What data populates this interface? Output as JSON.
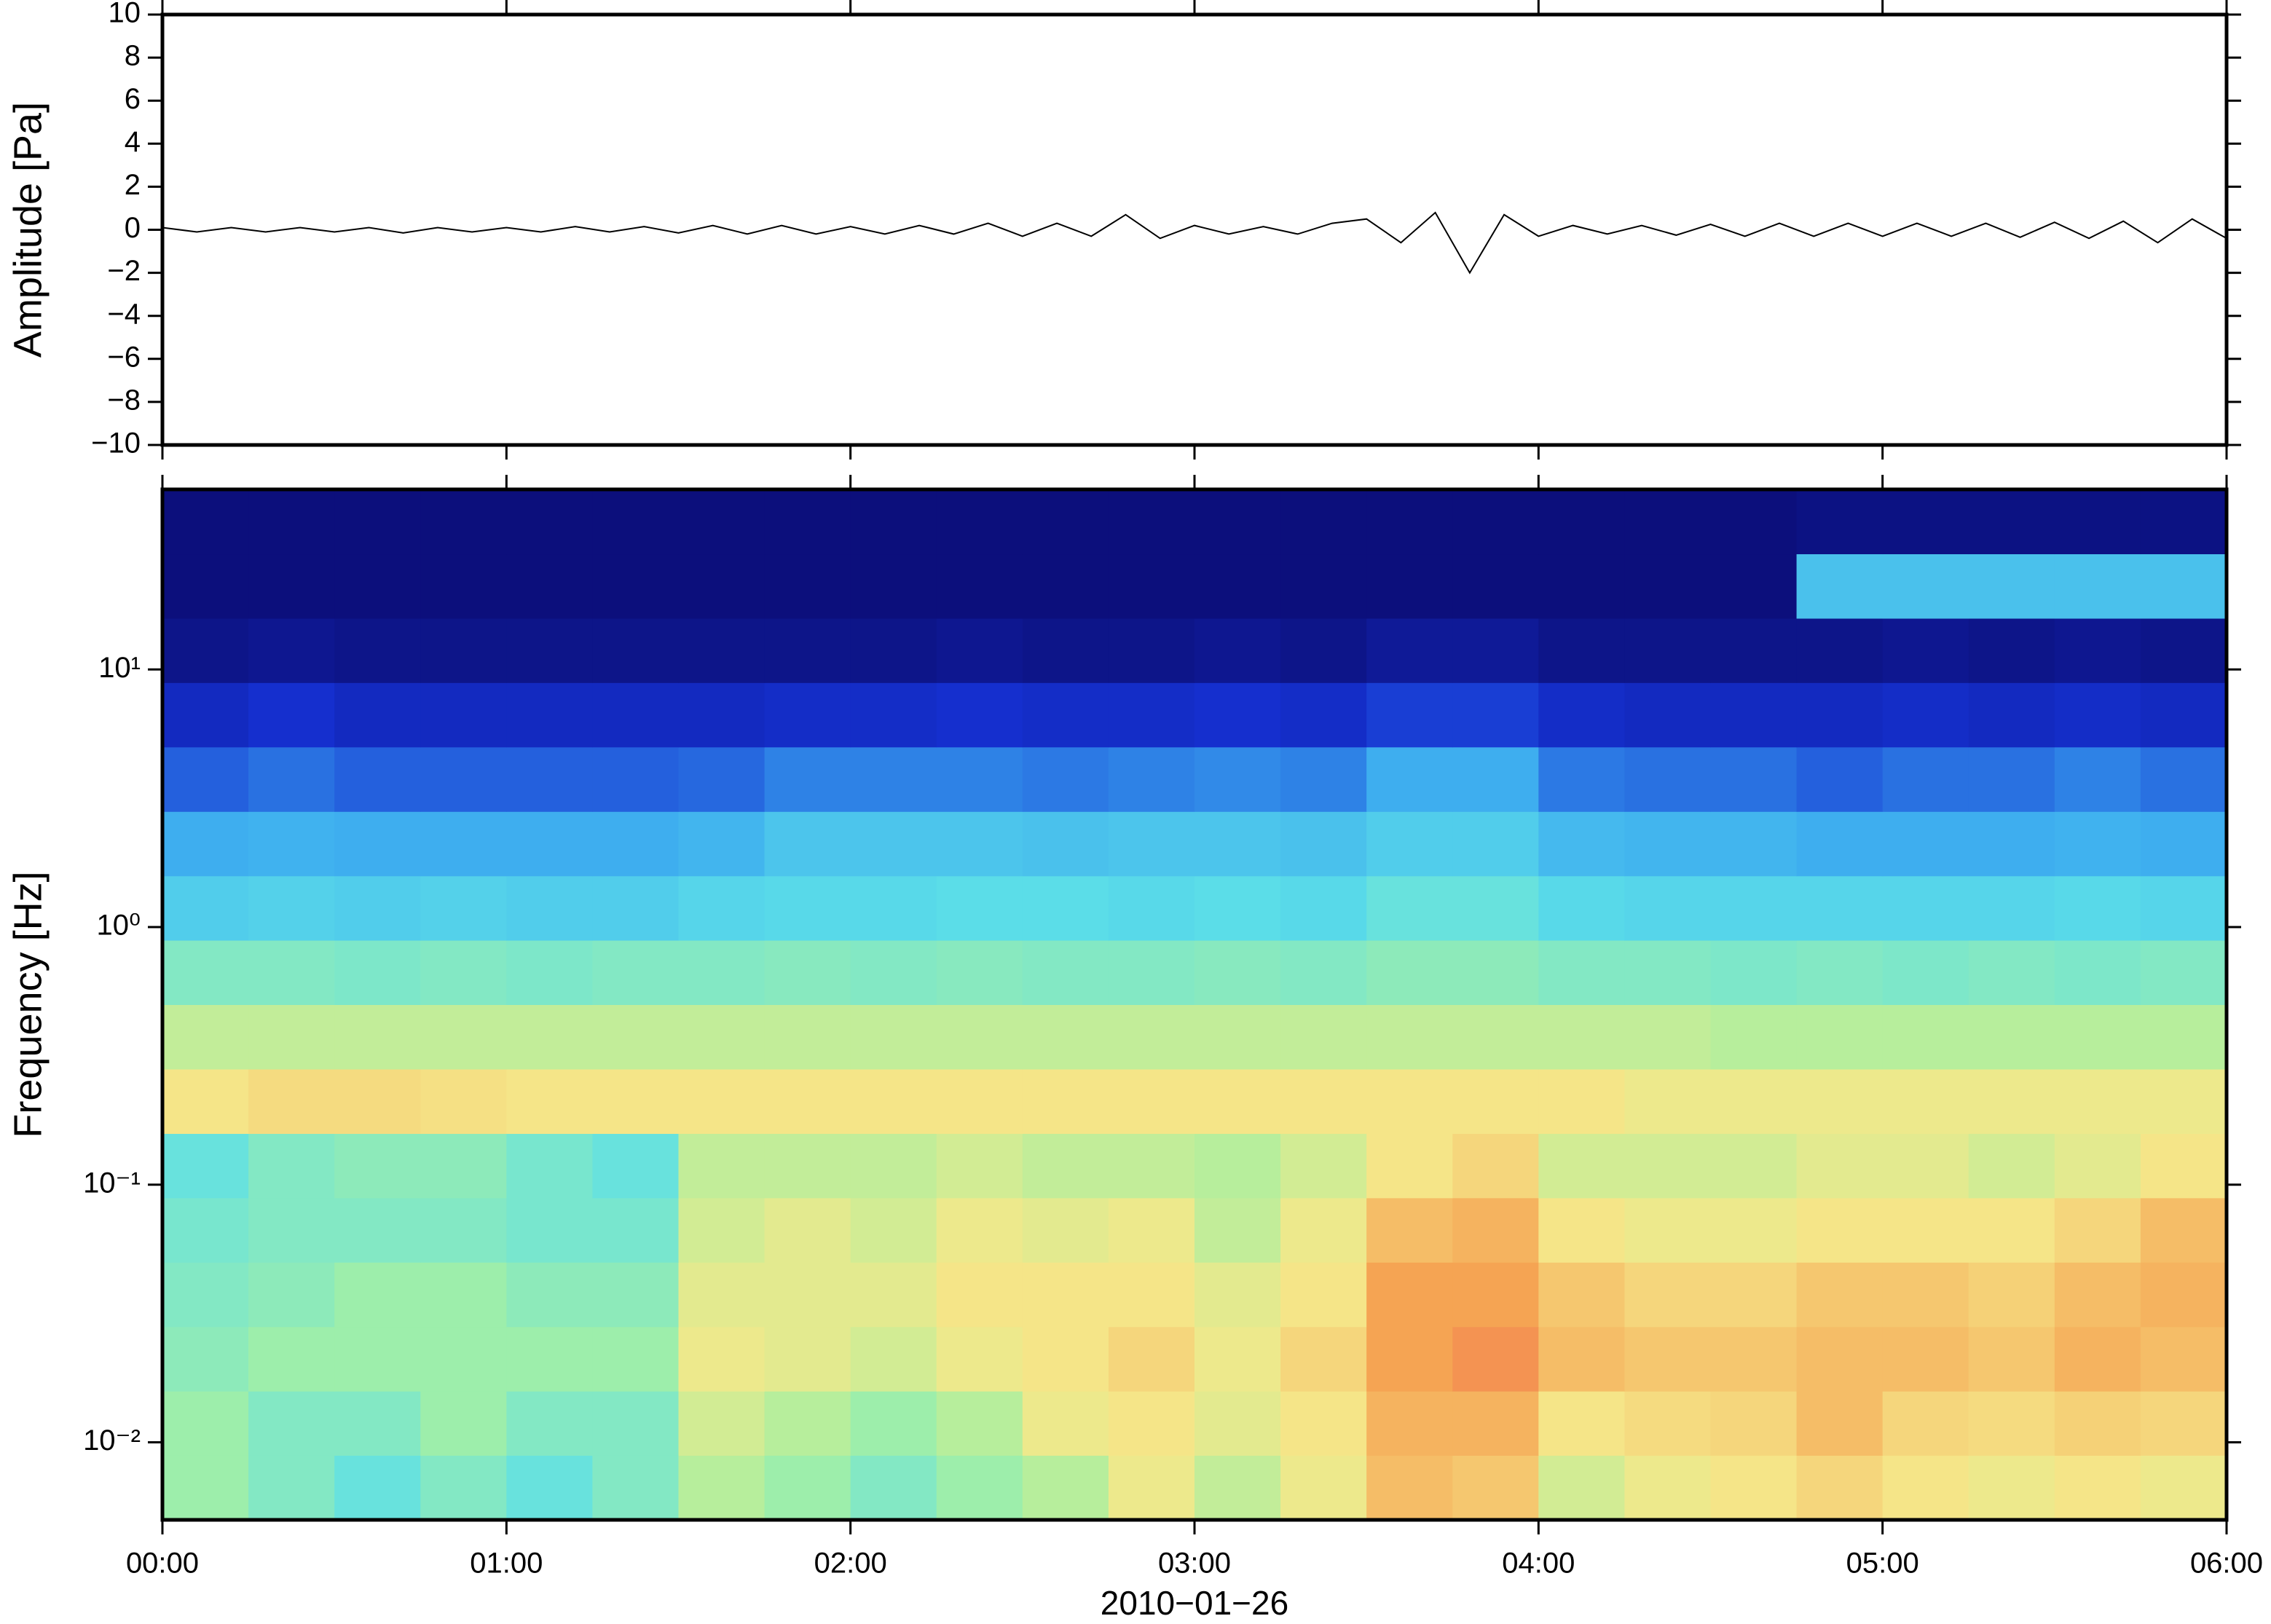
{
  "chart_data": [
    {
      "type": "line",
      "ylabel": "Amplitude [Pa]",
      "xlim": [
        0,
        360
      ],
      "xticks": [
        0,
        60,
        120,
        180,
        240,
        300,
        360
      ],
      "ylim": [
        -10,
        10
      ],
      "yticks": [
        {
          "value": -10,
          "label": "−10"
        },
        {
          "value": -8,
          "label": "−8"
        },
        {
          "value": -6,
          "label": "−6"
        },
        {
          "value": -4,
          "label": "−4"
        },
        {
          "value": -2,
          "label": "−2"
        },
        0,
        2,
        4,
        6,
        8,
        10
      ],
      "color": "#000000",
      "x": [
        0,
        6,
        12,
        18,
        24,
        30,
        36,
        42,
        48,
        54,
        60,
        66,
        72,
        78,
        84,
        90,
        96,
        102,
        108,
        114,
        120,
        126,
        132,
        138,
        144,
        150,
        156,
        162,
        168,
        174,
        180,
        186,
        192,
        198,
        204,
        210,
        216,
        222,
        228,
        234,
        240,
        246,
        252,
        258,
        264,
        270,
        276,
        282,
        288,
        294,
        300,
        306,
        312,
        318,
        324,
        330,
        336,
        342,
        348,
        354,
        360
      ],
      "values": [
        0.1,
        -0.1,
        0.1,
        -0.1,
        0.1,
        -0.1,
        0.1,
        -0.15,
        0.1,
        -0.1,
        0.1,
        -0.1,
        0.15,
        -0.1,
        0.15,
        -0.15,
        0.2,
        -0.2,
        0.2,
        -0.2,
        0.15,
        -0.2,
        0.2,
        -0.2,
        0.3,
        -0.3,
        0.3,
        -0.3,
        0.7,
        -0.4,
        0.2,
        -0.2,
        0.15,
        -0.2,
        0.3,
        0.5,
        -0.6,
        0.8,
        -2.0,
        0.7,
        -0.3,
        0.2,
        -0.2,
        0.2,
        -0.25,
        0.25,
        -0.3,
        0.3,
        -0.3,
        0.3,
        -0.3,
        0.3,
        -0.3,
        0.3,
        -0.35,
        0.35,
        -0.4,
        0.4,
        -0.6,
        0.5,
        -0.4
      ]
    },
    {
      "type": "heatmap",
      "ylabel": "Frequency [Hz]",
      "xlabel": "2010−01−26",
      "xlim": [
        0,
        360
      ],
      "xticks": [
        {
          "value": 0,
          "label": "00:00"
        },
        {
          "value": 60,
          "label": "01:00"
        },
        {
          "value": 120,
          "label": "02:00"
        },
        {
          "value": 180,
          "label": "03:00"
        },
        {
          "value": 240,
          "label": "04:00"
        },
        {
          "value": 300,
          "label": "05:00"
        },
        {
          "value": 360,
          "label": "06:00"
        }
      ],
      "ylim": [
        0.005,
        50
      ],
      "log_y": true,
      "yticks": [
        {
          "value": 0.01,
          "label": "10⁻²"
        },
        {
          "value": 0.1,
          "label": "10⁻¹"
        },
        {
          "value": 1,
          "label": "10⁰"
        },
        {
          "value": 10,
          "label": "10¹"
        }
      ],
      "colormap": [
        "#0a0a6e",
        "#1530d0",
        "#3aa8f0",
        "#5de0e8",
        "#a8f0a0",
        "#f5e88a",
        "#f5a050",
        "#f0505a"
      ],
      "xbins": [
        0,
        15,
        30,
        45,
        60,
        75,
        90,
        105,
        120,
        135,
        150,
        165,
        180,
        195,
        210,
        225,
        240,
        255,
        270,
        285,
        300,
        315,
        330,
        345,
        360
      ],
      "ybins": [
        0.005,
        0.0089,
        0.0158,
        0.0281,
        0.05,
        0.0889,
        0.158,
        0.281,
        0.5,
        0.889,
        1.58,
        2.81,
        5,
        8.89,
        15.8,
        28.1,
        50
      ],
      "z": [
        [
          0.55,
          0.5,
          0.45,
          0.5,
          0.45,
          0.5,
          0.6,
          0.55,
          0.5,
          0.55,
          0.6,
          0.7,
          0.62,
          0.7,
          0.8,
          0.78,
          0.65,
          0.7,
          0.72,
          0.75,
          0.72,
          0.7,
          0.72,
          0.7
        ],
        [
          0.55,
          0.5,
          0.5,
          0.55,
          0.5,
          0.5,
          0.65,
          0.6,
          0.55,
          0.6,
          0.7,
          0.72,
          0.68,
          0.72,
          0.82,
          0.82,
          0.72,
          0.74,
          0.75,
          0.8,
          0.75,
          0.74,
          0.76,
          0.75
        ],
        [
          0.52,
          0.55,
          0.55,
          0.55,
          0.55,
          0.55,
          0.7,
          0.68,
          0.65,
          0.7,
          0.72,
          0.75,
          0.7,
          0.75,
          0.85,
          0.88,
          0.8,
          0.78,
          0.78,
          0.8,
          0.8,
          0.78,
          0.82,
          0.8
        ],
        [
          0.5,
          0.52,
          0.55,
          0.55,
          0.52,
          0.52,
          0.68,
          0.68,
          0.68,
          0.72,
          0.72,
          0.72,
          0.68,
          0.72,
          0.85,
          0.85,
          0.78,
          0.75,
          0.75,
          0.78,
          0.78,
          0.76,
          0.8,
          0.82
        ],
        [
          0.48,
          0.5,
          0.5,
          0.5,
          0.48,
          0.48,
          0.65,
          0.68,
          0.65,
          0.7,
          0.68,
          0.7,
          0.62,
          0.7,
          0.8,
          0.82,
          0.72,
          0.7,
          0.7,
          0.72,
          0.72,
          0.72,
          0.75,
          0.8
        ],
        [
          0.45,
          0.5,
          0.52,
          0.52,
          0.48,
          0.45,
          0.62,
          0.62,
          0.62,
          0.65,
          0.62,
          0.62,
          0.6,
          0.65,
          0.72,
          0.75,
          0.65,
          0.65,
          0.65,
          0.68,
          0.68,
          0.65,
          0.68,
          0.72
        ],
        [
          0.72,
          0.74,
          0.74,
          0.73,
          0.72,
          0.72,
          0.72,
          0.72,
          0.72,
          0.72,
          0.72,
          0.72,
          0.72,
          0.72,
          0.72,
          0.72,
          0.72,
          0.7,
          0.7,
          0.7,
          0.7,
          0.7,
          0.7,
          0.7
        ],
        [
          0.62,
          0.62,
          0.62,
          0.62,
          0.62,
          0.62,
          0.62,
          0.62,
          0.62,
          0.62,
          0.62,
          0.62,
          0.62,
          0.62,
          0.62,
          0.62,
          0.62,
          0.62,
          0.6,
          0.6,
          0.6,
          0.6,
          0.6,
          0.6
        ],
        [
          0.5,
          0.5,
          0.49,
          0.5,
          0.49,
          0.5,
          0.5,
          0.51,
          0.5,
          0.51,
          0.5,
          0.5,
          0.51,
          0.5,
          0.52,
          0.52,
          0.5,
          0.5,
          0.49,
          0.5,
          0.49,
          0.5,
          0.49,
          0.5
        ],
        [
          0.38,
          0.39,
          0.38,
          0.39,
          0.38,
          0.38,
          0.4,
          0.41,
          0.41,
          0.42,
          0.42,
          0.41,
          0.42,
          0.41,
          0.45,
          0.45,
          0.41,
          0.4,
          0.4,
          0.4,
          0.4,
          0.4,
          0.41,
          0.4
        ],
        [
          0.3,
          0.31,
          0.3,
          0.3,
          0.3,
          0.3,
          0.32,
          0.36,
          0.36,
          0.36,
          0.35,
          0.36,
          0.36,
          0.35,
          0.38,
          0.38,
          0.33,
          0.32,
          0.32,
          0.3,
          0.3,
          0.3,
          0.31,
          0.3
        ],
        [
          0.2,
          0.22,
          0.2,
          0.2,
          0.2,
          0.2,
          0.21,
          0.24,
          0.24,
          0.24,
          0.23,
          0.24,
          0.25,
          0.24,
          0.3,
          0.3,
          0.23,
          0.22,
          0.22,
          0.2,
          0.22,
          0.22,
          0.24,
          0.22
        ],
        [
          0.12,
          0.14,
          0.12,
          0.12,
          0.12,
          0.12,
          0.12,
          0.13,
          0.13,
          0.14,
          0.13,
          0.13,
          0.14,
          0.13,
          0.16,
          0.16,
          0.13,
          0.12,
          0.12,
          0.12,
          0.13,
          0.12,
          0.13,
          0.12
        ],
        [
          0.04,
          0.05,
          0.04,
          0.04,
          0.04,
          0.04,
          0.04,
          0.04,
          0.04,
          0.05,
          0.04,
          0.04,
          0.05,
          0.04,
          0.06,
          0.06,
          0.04,
          0.04,
          0.04,
          0.04,
          0.05,
          0.04,
          0.05,
          0.04
        ],
        [
          0.02,
          0.02,
          0.02,
          0.02,
          0.02,
          0.02,
          0.02,
          0.02,
          0.02,
          0.02,
          0.02,
          0.02,
          0.02,
          0.02,
          0.02,
          0.02,
          0.02,
          0.02,
          0.02,
          0.35,
          0.35,
          0.35,
          0.35,
          0.35
        ],
        [
          0.02,
          0.02,
          0.02,
          0.02,
          0.02,
          0.02,
          0.02,
          0.02,
          0.02,
          0.02,
          0.02,
          0.02,
          0.02,
          0.02,
          0.02,
          0.02,
          0.02,
          0.02,
          0.02,
          0.03,
          0.03,
          0.03,
          0.03,
          0.03
        ]
      ]
    }
  ]
}
